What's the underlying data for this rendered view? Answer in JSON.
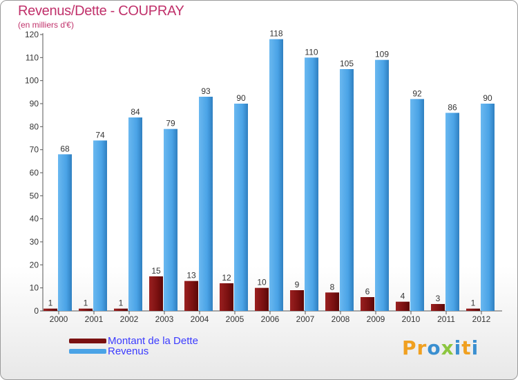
{
  "title": "Revenus/Dette - COUPRAY",
  "subtitle": "(en milliers d'€)",
  "logo_text": "Proxiti",
  "chart_data": {
    "type": "bar",
    "title": "Revenus/Dette - COUPRAY",
    "ylabel": "(en milliers d'€)",
    "ylim": [
      0,
      120
    ],
    "yticks": [
      0,
      10,
      20,
      30,
      40,
      50,
      60,
      70,
      80,
      90,
      100,
      110,
      120
    ],
    "grid": false,
    "legend_position": "bottom-left",
    "categories": [
      "2000",
      "2001",
      "2002",
      "2003",
      "2004",
      "2005",
      "2006",
      "2007",
      "2008",
      "2009",
      "2010",
      "2011",
      "2012"
    ],
    "series": [
      {
        "name": "Montant de la Dette",
        "color": "#7a1010",
        "values": [
          1,
          1,
          1,
          15,
          13,
          12,
          10,
          9,
          8,
          6,
          4,
          3,
          1
        ]
      },
      {
        "name": "Revenus",
        "color": "#4aa3e6",
        "values": [
          68,
          74,
          84,
          79,
          93,
          90,
          118,
          110,
          105,
          109,
          92,
          86,
          90
        ]
      }
    ]
  },
  "legend": [
    {
      "label": "Montant de la Dette",
      "color": "#7a1010"
    },
    {
      "label": "Revenus",
      "color": "#4aa3e6"
    }
  ]
}
